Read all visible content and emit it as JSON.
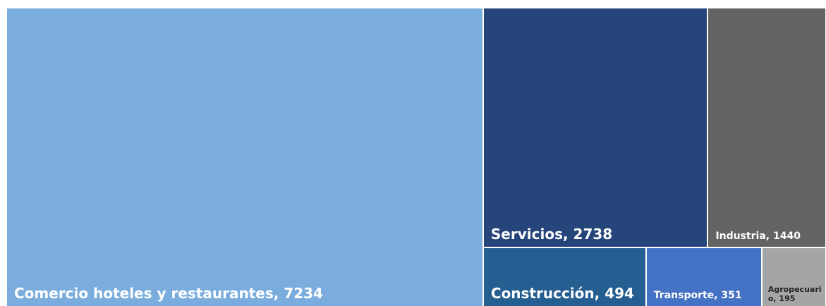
{
  "chart_data": {
    "type": "treemap",
    "labels": [
      "Comercio hoteles y restaurantes, 7234",
      "Servicios, 2738",
      "Industria, 1440",
      "Construcción, 494",
      "Transporte, 351",
      "Agropecuario, 195"
    ],
    "values": [
      7234,
      2738,
      1440,
      494,
      351,
      195
    ],
    "colors": [
      "#7aaddd",
      "#26457a",
      "#636363",
      "#255e91",
      "#4472c4",
      "#a5a5a5"
    ]
  }
}
